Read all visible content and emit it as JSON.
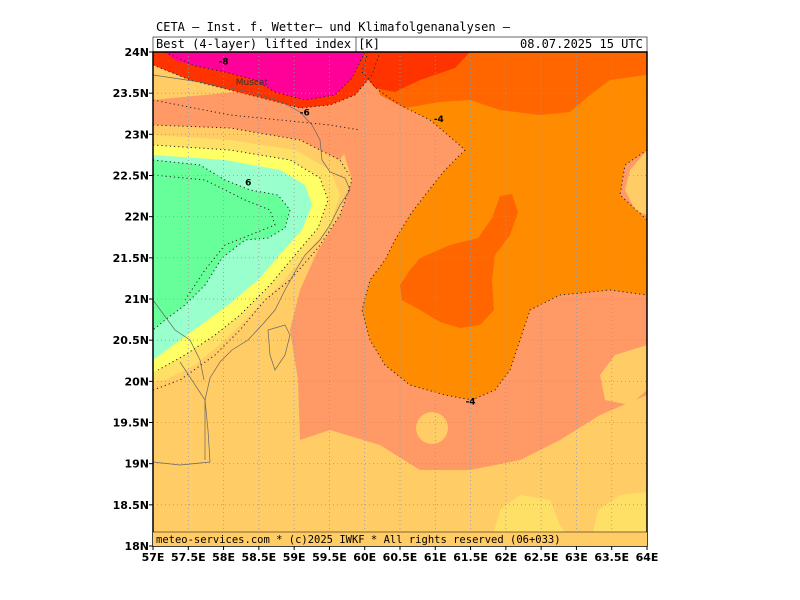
{
  "header": {
    "source_line": "CETA — Inst. f. Wetter— und Klimafolgenanalysen —",
    "parameter": "Best (4-layer) lifted index [K]",
    "valid_time": "08.07.2025 15 UTC"
  },
  "footer": {
    "copyright": "meteo-services.com * (c)2025 IWKF * All rights reserved (06+033)"
  },
  "map": {
    "lon_range": [
      57,
      64
    ],
    "lat_range": [
      18,
      24
    ],
    "lon_ticks": [
      "57E",
      "57.5E",
      "58E",
      "58.5E",
      "59E",
      "59.5E",
      "60E",
      "60.5E",
      "61E",
      "61.5E",
      "62E",
      "62.5E",
      "63E",
      "63.5E",
      "64E"
    ],
    "lat_ticks": [
      "24N",
      "23.5N",
      "23N",
      "22.5N",
      "22N",
      "21.5N",
      "21N",
      "20.5N",
      "20N",
      "19.5N",
      "19N",
      "18.5N",
      "18N"
    ],
    "contour_labels": [
      {
        "text": "-8",
        "lon": 58.0,
        "lat": 23.85
      },
      {
        "text": "-6",
        "lon": 59.15,
        "lat": 23.23
      },
      {
        "text": "-4",
        "lon": 61.05,
        "lat": 23.15
      },
      {
        "text": "6",
        "lon": 58.35,
        "lat": 22.38
      },
      {
        "text": "-4",
        "lon": 61.5,
        "lat": 19.72
      }
    ],
    "places": [
      {
        "name": "Muscat",
        "lon": 58.4,
        "lat": 23.6
      }
    ],
    "colors": {
      "lifted_le_-8": "#ff0099",
      "lifted_-8_-6": "#ff3300",
      "lifted_-6_-5": "#ff6600",
      "lifted_-5_-4": "#ff8c00",
      "lifted_-4_-2": "#ff9966",
      "lifted_-2_0": "#ffcc66",
      "lifted_0_2": "#ffe066",
      "lifted_2_4": "#ffff66",
      "lifted_4_6": "#99ffcc",
      "lifted_ge_6": "#66ff99"
    }
  }
}
